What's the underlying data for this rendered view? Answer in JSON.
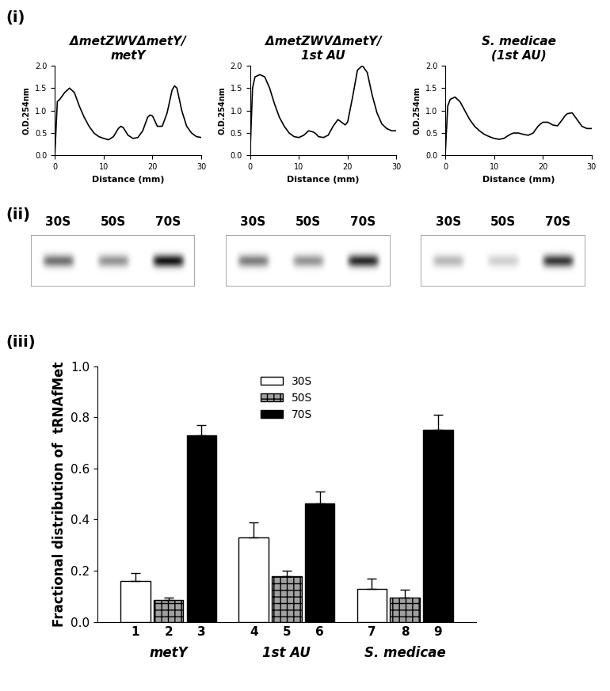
{
  "panel_labels": [
    "(i)",
    "(ii)",
    "(iii)"
  ],
  "chart_data": [
    {
      "type": "line",
      "title": "ΔmetZWVΔmetY/\nmetY",
      "xlabel": "Distance (mm)",
      "ylabel": "O.D.254nm",
      "color": "#000000",
      "xlim": [
        0,
        30
      ],
      "xticks": [
        0,
        10,
        20,
        30
      ],
      "ylim": [
        0,
        2
      ],
      "yticks": [
        {
          "value": 0,
          "label": "0.0"
        },
        {
          "value": 0.5,
          "label": "0.5"
        },
        {
          "value": 1,
          "label": "1.0"
        },
        {
          "value": 1.5,
          "label": "1.5"
        },
        {
          "value": 2,
          "label": "2.0"
        }
      ],
      "x": [
        0,
        0.5,
        1,
        2,
        3,
        4,
        5,
        6,
        7,
        8,
        9,
        10,
        11,
        12,
        13,
        13.5,
        14,
        15,
        16,
        17,
        18,
        19,
        19.5,
        20,
        21,
        22,
        23,
        24,
        24.5,
        25,
        26,
        27,
        28,
        29,
        30
      ],
      "values": [
        0.05,
        1.2,
        1.25,
        1.4,
        1.5,
        1.4,
        1.1,
        0.85,
        0.65,
        0.5,
        0.42,
        0.38,
        0.35,
        0.42,
        0.6,
        0.65,
        0.62,
        0.45,
        0.38,
        0.4,
        0.55,
        0.85,
        0.9,
        0.88,
        0.65,
        0.65,
        0.95,
        1.45,
        1.55,
        1.5,
        1.0,
        0.65,
        0.5,
        0.42,
        0.4
      ]
    },
    {
      "type": "line",
      "title": "ΔmetZWVΔmetY/\n1st AU",
      "xlabel": "Distance (mm)",
      "ylabel": "O.D.254nm",
      "color": "#000000",
      "xlim": [
        0,
        30
      ],
      "xticks": [
        0,
        10,
        20,
        30
      ],
      "ylim": [
        0,
        2
      ],
      "yticks": [
        {
          "value": 0,
          "label": "0.0"
        },
        {
          "value": 0.5,
          "label": "0.5"
        },
        {
          "value": 1,
          "label": "1.0"
        },
        {
          "value": 1.5,
          "label": "1.5"
        },
        {
          "value": 2,
          "label": "2.0"
        }
      ],
      "x": [
        0,
        0.5,
        1,
        2,
        3,
        4,
        5,
        6,
        7,
        8,
        9,
        10,
        11,
        12,
        13,
        13.5,
        14,
        15,
        16,
        17,
        18,
        19,
        19.5,
        20,
        21,
        22,
        23,
        24,
        24.5,
        25,
        26,
        27,
        28,
        29,
        30
      ],
      "values": [
        0.05,
        1.5,
        1.75,
        1.8,
        1.75,
        1.5,
        1.15,
        0.85,
        0.65,
        0.5,
        0.42,
        0.4,
        0.45,
        0.55,
        0.52,
        0.48,
        0.42,
        0.4,
        0.45,
        0.65,
        0.8,
        0.72,
        0.68,
        0.75,
        1.3,
        1.9,
        2.0,
        1.85,
        1.6,
        1.35,
        0.95,
        0.7,
        0.6,
        0.55,
        0.55
      ]
    },
    {
      "type": "line",
      "title": "S. medicae\n(1st AU)",
      "xlabel": "Distance (mm)",
      "ylabel": "O.D.254nm",
      "color": "#000000",
      "xlim": [
        0,
        30
      ],
      "xticks": [
        0,
        10,
        20,
        30
      ],
      "ylim": [
        0,
        2
      ],
      "yticks": [
        {
          "value": 0,
          "label": "0.0"
        },
        {
          "value": 0.5,
          "label": "0.5"
        },
        {
          "value": 1,
          "label": "1.0"
        },
        {
          "value": 1.5,
          "label": "1.5"
        },
        {
          "value": 2,
          "label": "2.0"
        }
      ],
      "x": [
        0,
        0.5,
        1,
        2,
        3,
        4,
        5,
        6,
        7,
        8,
        9,
        10,
        11,
        12,
        13,
        13.5,
        14,
        15,
        16,
        17,
        18,
        19,
        19.5,
        20,
        21,
        22,
        23,
        24,
        24.5,
        25,
        26,
        27,
        28,
        29,
        30
      ],
      "values": [
        0.05,
        1.1,
        1.25,
        1.3,
        1.2,
        1.0,
        0.8,
        0.65,
        0.55,
        0.47,
        0.42,
        0.38,
        0.36,
        0.38,
        0.45,
        0.48,
        0.5,
        0.5,
        0.47,
        0.45,
        0.5,
        0.65,
        0.7,
        0.74,
        0.74,
        0.68,
        0.66,
        0.8,
        0.88,
        0.93,
        0.95,
        0.8,
        0.65,
        0.6,
        0.6
      ]
    },
    {
      "type": "bar",
      "ylabel": "Fractional distribution of  tRNAfMet",
      "categories": [
        "metY",
        "1st AU",
        "S. medicae"
      ],
      "legend": "upper center",
      "ylim": [
        0,
        1
      ],
      "yticks": [
        {
          "value": 0,
          "label": "0.0"
        },
        {
          "value": 0.2,
          "label": "0.2"
        },
        {
          "value": 0.4,
          "label": "0.4"
        },
        {
          "value": 0.6,
          "label": "0.6"
        },
        {
          "value": 0.8,
          "label": "0.8"
        },
        {
          "value": 1,
          "label": "1.0"
        }
      ],
      "series": [
        {
          "name": "30S",
          "color": "#ffffff",
          "values": [
            0.16,
            0.33,
            0.13
          ],
          "errors": [
            0.03,
            0.06,
            0.04
          ],
          "labels": [
            "1",
            "4",
            "7"
          ]
        },
        {
          "name": "50S",
          "color": "#a0a0a0",
          "values": [
            0.085,
            0.18,
            0.095
          ],
          "errors": [
            0.01,
            0.02,
            0.03
          ],
          "labels": [
            "2",
            "5",
            "8"
          ]
        },
        {
          "name": "70S",
          "color": "#000000",
          "values": [
            0.73,
            0.465,
            0.75
          ],
          "errors": [
            0.04,
            0.045,
            0.06
          ],
          "labels": [
            "3",
            "6",
            "9"
          ]
        }
      ]
    }
  ],
  "gels": [
    {
      "lanes": [
        "30S",
        "50S",
        "70S"
      ],
      "intensities": [
        0.6,
        0.45,
        1.0
      ]
    },
    {
      "lanes": [
        "30S",
        "50S",
        "70S"
      ],
      "intensities": [
        0.55,
        0.45,
        0.9
      ]
    },
    {
      "lanes": [
        "30S",
        "50S",
        "70S"
      ],
      "intensities": [
        0.3,
        0.2,
        0.85
      ]
    }
  ]
}
